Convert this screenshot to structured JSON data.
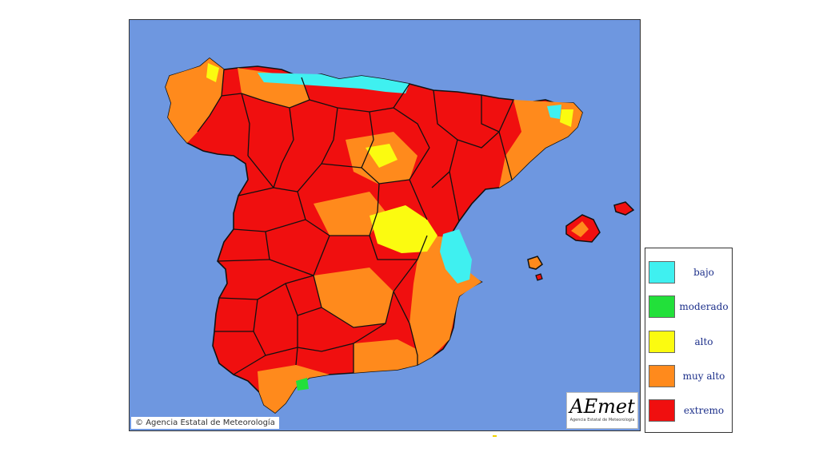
{
  "map": {
    "copyright": "Agencia Estatal de Meteorología",
    "logo": {
      "mark": "AEmet",
      "subtitle": "Agencia Estatal de Meteorología"
    },
    "colors": {
      "sea": "#6e97e0",
      "bajo": "#3ff0f0",
      "moderado": "#22e03a",
      "alto": "#fbfb10",
      "muy_alto": "#ff8a1c",
      "extremo": "#f00f0f",
      "border": "#111111"
    }
  },
  "legend": {
    "items": [
      {
        "label": "bajo",
        "color": "#3ff0f0"
      },
      {
        "label": "moderado",
        "color": "#22e03a"
      },
      {
        "label": "alto",
        "color": "#fbfb10"
      },
      {
        "label": "muy alto",
        "color": "#ff8a1c"
      },
      {
        "label": "extremo",
        "color": "#f00f0f"
      }
    ]
  }
}
